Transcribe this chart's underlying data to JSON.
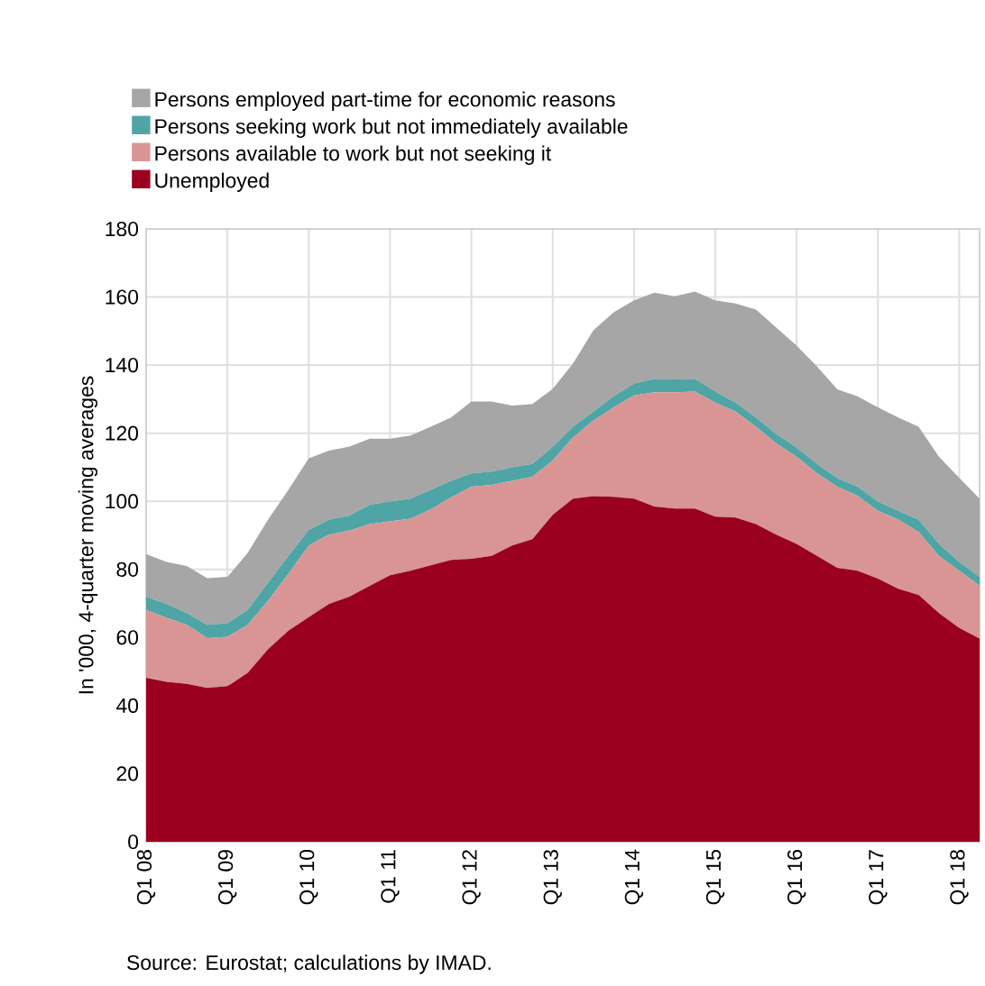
{
  "chart_data": {
    "type": "area",
    "stacked": true,
    "ylabel": "In '000, 4-quarter moving averages",
    "categories": [
      "Q1 08",
      null,
      null,
      null,
      "Q1 09",
      null,
      null,
      null,
      "Q1 10",
      null,
      null,
      null,
      "Q1 11",
      null,
      null,
      null,
      "Q1 12",
      null,
      null,
      null,
      "Q1 13",
      null,
      null,
      null,
      "Q1 14",
      null,
      null,
      null,
      "Q1 15",
      null,
      null,
      null,
      "Q1 16",
      null,
      null,
      null,
      "Q1 17",
      null,
      null,
      null,
      "Q1 18",
      null
    ],
    "series": [
      {
        "name": "Unemployed",
        "color": "#9b001e",
        "values": [
          48.2,
          47,
          46.4,
          45.2,
          45.7,
          49.6,
          56.6,
          62,
          66,
          69.9,
          72,
          75.2,
          78.3,
          79.6,
          81.2,
          82.8,
          83.1,
          84,
          87,
          88.9,
          96,
          100.8,
          101.5,
          101.3,
          100.8,
          98.5,
          97.9,
          97.9,
          95.5,
          95.2,
          93.3,
          90.2,
          87.5,
          84,
          80.5,
          79.6,
          77.3,
          74.3,
          72.5,
          67.2,
          62.8,
          59.7
        ]
      },
      {
        "name": "Persons available to work but not seeking it",
        "color": "#d99594",
        "values": [
          19.9,
          18.8,
          17.3,
          14.6,
          14.5,
          14.1,
          14.2,
          16.7,
          21,
          20.3,
          19.4,
          18.1,
          15.8,
          15.3,
          16.4,
          18.3,
          21.2,
          20.8,
          19,
          18.3,
          16,
          17.9,
          22.2,
          26.3,
          30.3,
          33.5,
          34.1,
          34.3,
          33.5,
          31.1,
          28.6,
          26.8,
          25.6,
          24.2,
          23.8,
          22,
          19.9,
          20.3,
          18.5,
          16.8,
          16.8,
          15.5
        ]
      },
      {
        "name": "Persons seeking work but not immediately available",
        "color": "#4fa5a5",
        "values": [
          3.9,
          4.1,
          3.5,
          3.9,
          4,
          4.4,
          5.3,
          5.3,
          4.6,
          4.4,
          4.4,
          5.7,
          5.8,
          5.9,
          5.8,
          4.9,
          3.9,
          3.9,
          4,
          3.8,
          4,
          3.2,
          2.6,
          3.2,
          3.5,
          4,
          3.8,
          3.8,
          3.2,
          2.7,
          2.7,
          2.8,
          2.7,
          2.8,
          2.5,
          2.7,
          2.7,
          2.6,
          3.6,
          3.5,
          2.6,
          2.6
        ]
      },
      {
        "name": "Persons employed part-time for economic reasons",
        "color": "#a6a6a6",
        "values": [
          12.5,
          12.3,
          13.8,
          13.7,
          13.6,
          16.8,
          18.5,
          19.4,
          21,
          20.3,
          20.3,
          19.4,
          18.5,
          18.5,
          18.5,
          18.6,
          21.1,
          20.6,
          18.1,
          17.6,
          17,
          18.6,
          23.9,
          24.7,
          24.4,
          25.3,
          24.4,
          25.6,
          26.8,
          29.1,
          31.7,
          31.2,
          29.9,
          28.6,
          26.1,
          26.5,
          27.7,
          27.4,
          27.3,
          25.6,
          24.7,
          23
        ]
      }
    ],
    "ylim": [
      0,
      180
    ],
    "yticks": [
      0,
      20,
      40,
      60,
      80,
      100,
      120,
      140,
      160,
      180
    ],
    "grid": true,
    "legend": "top",
    "annotations": [
      "Source: Eurostat; calculations by IMAD."
    ]
  }
}
